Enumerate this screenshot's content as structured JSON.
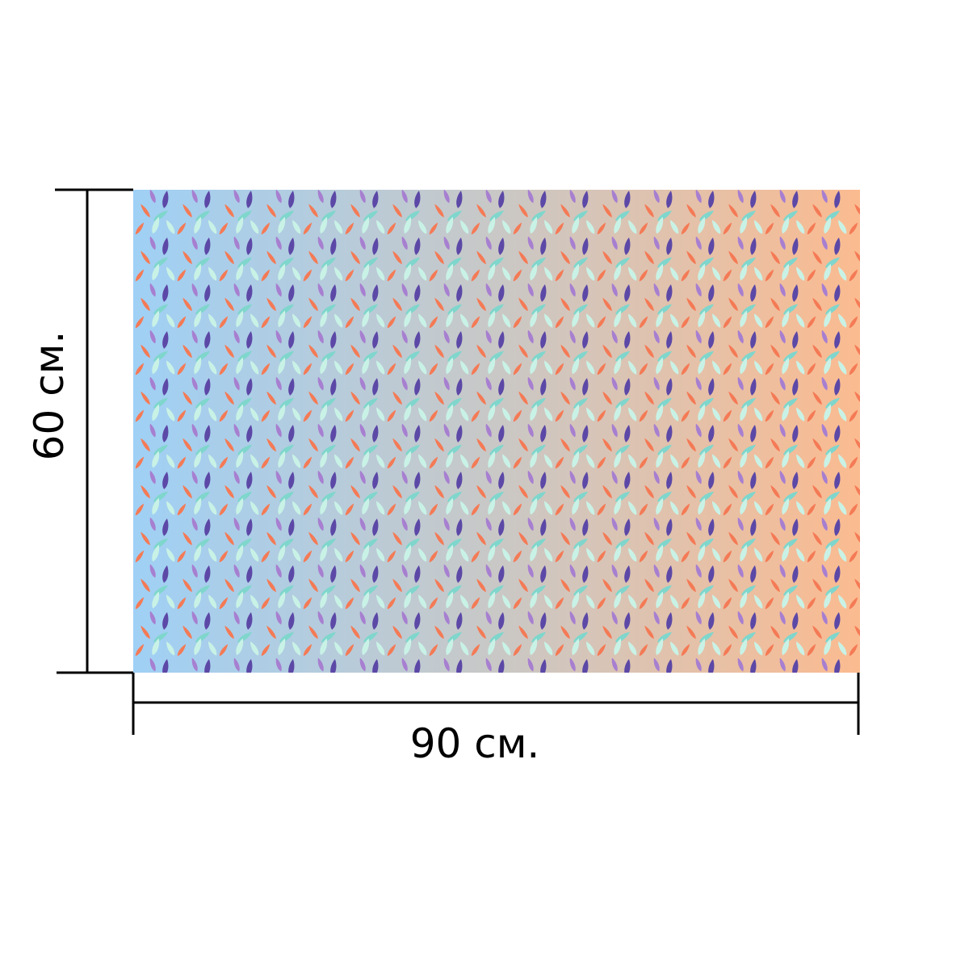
{
  "product": {
    "pattern_name": "leaf-pattern",
    "colors": {
      "gradient_left": "#9fd0f5",
      "gradient_mid": "#c9c8c6",
      "gradient_right": "#fbbb90",
      "leaf_light": "#c9f2e6",
      "leaf_teal": "#7fd6cc",
      "leaf_purple": "#5c48a6",
      "leaf_lilac": "#a77fd0",
      "leaf_coral": "#f47a55",
      "dimension_line": "#000000"
    }
  },
  "dimensions": {
    "height_label": "60 см.",
    "width_label": "90 см."
  }
}
